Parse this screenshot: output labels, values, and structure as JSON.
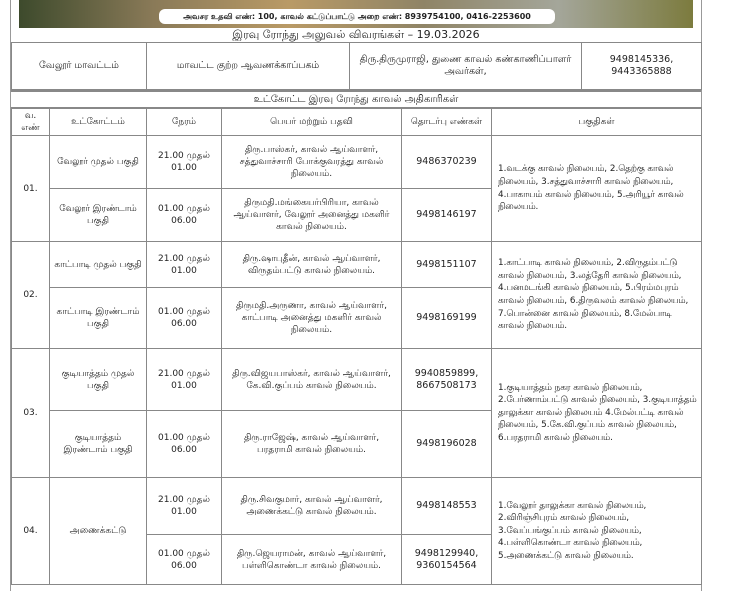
{
  "banner": {
    "helpline": "அவசர உதவி எண்: 100, காவல் கட்டுப்பாட்டு அறை எண்: 8939754100, 0416-2253600"
  },
  "title": "இரவு ரோந்து அலுவல் விவரங்கள் – 19.03.2026",
  "district": {
    "name": "வேலூர் மாவட்டம்",
    "office": "மாவட்ட குற்ற ஆவணக்காப்பகம்",
    "officer": "திரு.திருமுராஜி, துணை காவல் கண்காணிப்பாளர் அவர்கள்,",
    "phone": "9498145336, 9443365888"
  },
  "subtitle": "உட்கோட்ட இரவு ரோந்து காவல் அதிகாரிகள்",
  "headers": [
    "வ. எண்",
    "உட்கோட்டம்",
    "நேரம்",
    "பெயர் மற்றும் பதவி",
    "தொடர்பு எண்கள்",
    "பகுதிகள்"
  ],
  "rows": [
    {
      "no": "01.",
      "areas": "1.வடக்கு காவல் நிலையம், 2.தெற்கு காவல் நிலையம், 3.சத்துவாச்சாரி காவல் நிலையம், 4.பாகாயம் காவல் நிலையம், 5.அரியூர் காவல் நிலையம்.",
      "shifts": [
        {
          "division": "வேலூர் முதல் பகுதி",
          "time": "21.00 முதல் 01.00",
          "officer": "திரு.பாஸ்கர், காவல் ஆய்வாளர், சத்துவாச்சாரி போக்குவரத்து காவல் நிலையம்.",
          "phone": "9486370239"
        },
        {
          "division": "வேலூர் இரண்டாம் பகுதி",
          "time": "01.00 முதல் 06.00",
          "officer": "திருமதி.மங்கையர்பிரியா, காவல் ஆய்வாளர், வேலூர் அனைத்து மகளிர் காவல் நிலையம்.",
          "phone": "9498146197"
        }
      ]
    },
    {
      "no": "02.",
      "areas": "1.காட்பாடி காவல் நிலையம், 2.விருதம்பட்டு காவல் நிலையம், 3.லத்தேரி காவல் நிலையம், 4.பனமடங்கி காவல் நிலையம், 5.பிரம்மபுரம் காவல் நிலையம், 6.திருவலம் காவல் நிலையம், 7.பொன்னை காவல் நிலையம், 8.மேல்பாடி காவல் நிலையம்.",
      "shifts": [
        {
          "division": "காட்பாடி முதல் பகுதி",
          "time": "21.00 முதல் 01.00",
          "officer": "திரு.ஷாபுதீன், காவல் ஆய்வாளர், விருதம்பட்டு காவல் நிலையம்.",
          "phone": "9498151107"
        },
        {
          "division": "காட்பாடி இரண்டாம் பகுதி",
          "time": "01.00 முதல் 06.00",
          "officer": "திருமதி.அருணா, காவல் ஆய்வாளர், காட்பாடி அனைத்து மகளிர் காவல் நிலையம்.",
          "phone": "9498169199"
        }
      ]
    },
    {
      "no": "03.",
      "areas": "1.குடியாத்தம் நகர காவல் நிலையம், 2.பேர்ணாம்பட்டு காவல் நிலையம், 3.குடியாத்தம் தாலுக்கா காவல் நிலையம் 4.மேல்பட்டி காவல் நிலையம், 5.கே.வி.குப்பம் காவல் நிலையம், 6.பரதராமி காவல் நிலையம்.",
      "shifts": [
        {
          "division": "குடியாத்தம் முதல் பகுதி",
          "time": "21.00 முதல் 01.00",
          "officer": "திரு.விஜயபாஸ்கர், காவல் ஆய்வாளர், கே.வி.குப்பம் காவல் நிலையம்.",
          "phone": "9940859899, 8667508173"
        },
        {
          "division": "குடியாத்தம் இரண்டாம் பகுதி",
          "time": "01.00 முதல் 06.00",
          "officer": "திரு.ராஜேஷ், காவல் ஆய்வாளர், பரதராமி காவல் நிலையம்.",
          "phone": "9498196028"
        }
      ]
    },
    {
      "no": "04.",
      "division": "அணைக்கட்டு",
      "areas": "1.வேலூர் தாலுக்கா காவல் நிலையம், 2.விரிஞ்சிபுரம் காவல் நிலையம், 3.வேப்பங்குப்பம் காவல் நிலையம், 4.பள்ளிகொண்டா காவல் நிலையம், 5.அணைக்கட்டு காவல் நிலையம்.",
      "shifts": [
        {
          "time": "21.00 முதல் 01.00",
          "officer": "திரு.சிவகுமார், காவல் ஆய்வாளர், அணைக்கட்டு காவல் நிலையம்.",
          "phone": "9498148553"
        },
        {
          "time": "01.00 முதல் 06.00",
          "officer": "திரு.ஜெயராமன், காவல் ஆய்வாளர், பள்ளிகொண்டா காவல் நிலையம்.",
          "phone": "9498129940, 9360154564"
        }
      ]
    }
  ]
}
